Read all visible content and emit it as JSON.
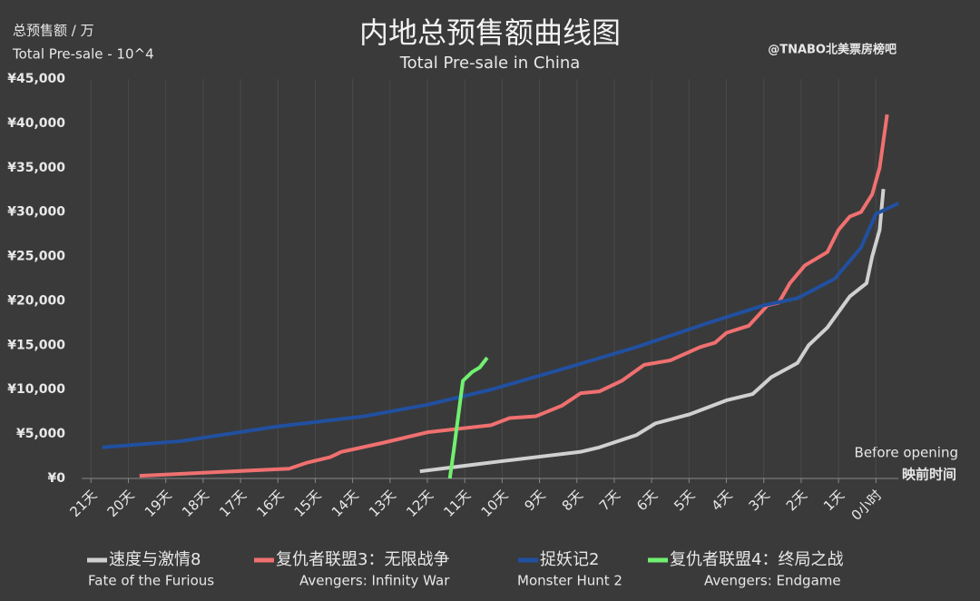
{
  "chart_data": {
    "type": "line",
    "title": "内地总预售额曲线图",
    "subtitle": "Total Pre-sale in China",
    "y_label": "总预售额 / 万",
    "y_label_en": "Total Pre-sale - 10^4",
    "watermark": "@TNABO北美票房榜吧",
    "x_label_en": "Before opening",
    "x_label": "映前时间",
    "xlim": [
      21.25,
      -0.6
    ],
    "ylim": [
      0,
      45000
    ],
    "xticks": [
      {
        "value": 21,
        "label": "21天"
      },
      {
        "value": 20,
        "label": "20天"
      },
      {
        "value": 19,
        "label": "19天"
      },
      {
        "value": 18,
        "label": "18天"
      },
      {
        "value": 17,
        "label": "17天"
      },
      {
        "value": 16,
        "label": "16天"
      },
      {
        "value": 15,
        "label": "15天"
      },
      {
        "value": 14,
        "label": "14天"
      },
      {
        "value": 13,
        "label": "13天"
      },
      {
        "value": 12,
        "label": "12天"
      },
      {
        "value": 11,
        "label": "11天"
      },
      {
        "value": 10,
        "label": "10天"
      },
      {
        "value": 9,
        "label": "9天"
      },
      {
        "value": 8,
        "label": "8天"
      },
      {
        "value": 7,
        "label": "7天"
      },
      {
        "value": 6,
        "label": "6天"
      },
      {
        "value": 5,
        "label": "5天"
      },
      {
        "value": 4,
        "label": "4天"
      },
      {
        "value": 3,
        "label": "3天"
      },
      {
        "value": 2,
        "label": "2天"
      },
      {
        "value": 1,
        "label": "1天"
      },
      {
        "value": 0,
        "label": "0小时"
      }
    ],
    "yticks": [
      {
        "value": 0,
        "label": "¥0"
      },
      {
        "value": 5000,
        "label": "¥5,000"
      },
      {
        "value": 10000,
        "label": "¥10,000"
      },
      {
        "value": 15000,
        "label": "¥15,000"
      },
      {
        "value": 20000,
        "label": "¥20,000"
      },
      {
        "value": 25000,
        "label": "¥25,000"
      },
      {
        "value": 30000,
        "label": "¥30,000"
      },
      {
        "value": 35000,
        "label": "¥35,000"
      },
      {
        "value": 40000,
        "label": "¥40,000"
      },
      {
        "value": 45000,
        "label": "¥45,000"
      }
    ],
    "grid": true,
    "legend": "bottom",
    "series": [
      {
        "name": "速度与激情8",
        "name_en": "Fate of the Furious",
        "color": "#d0d0d0",
        "x": [
          12.2,
          10.1,
          7.9,
          7.4,
          6.4,
          5.9,
          5.0,
          4.0,
          3.3,
          2.8,
          2.1,
          1.8,
          1.3,
          0.7,
          0.25,
          0.1,
          -0.1,
          -0.2
        ],
        "values": [
          800,
          1900,
          3000,
          3500,
          4900,
          6200,
          7200,
          8800,
          9500,
          11400,
          13000,
          15000,
          17000,
          20500,
          22000,
          25000,
          28000,
          32600
        ]
      },
      {
        "name": "复仇者联盟3：无限战争",
        "name_en": "Avengers: Infinity War",
        "color": "#f07070",
        "x": [
          19.7,
          15.7,
          15.2,
          14.6,
          14.3,
          13.2,
          12.0,
          10.3,
          9.8,
          9.1,
          8.4,
          7.9,
          7.4,
          6.8,
          6.2,
          5.5,
          4.7,
          4.3,
          4.0,
          3.4,
          2.9,
          2.6,
          2.3,
          1.9,
          1.3,
          1.0,
          0.7,
          0.4,
          0.1,
          -0.1,
          -0.2,
          -0.3
        ],
        "values": [
          300,
          1100,
          1800,
          2400,
          3000,
          4000,
          5200,
          6000,
          6800,
          7000,
          8200,
          9600,
          9800,
          11000,
          12800,
          13300,
          14800,
          15300,
          16400,
          17200,
          19500,
          19800,
          22000,
          24000,
          25500,
          28000,
          29500,
          30000,
          32000,
          35000,
          38000,
          41000
        ]
      },
      {
        "name": "捉妖记2",
        "name_en": "Monster Hunt 2",
        "color": "#2150a0",
        "x": [
          20.7,
          18.6,
          16.1,
          13.7,
          12.0,
          10.3,
          8.4,
          6.4,
          4.5,
          3.0,
          2.1,
          1.1,
          0.4,
          0.0,
          -0.6
        ],
        "values": [
          3500,
          4200,
          5800,
          7000,
          8300,
          10000,
          12300,
          14800,
          17500,
          19500,
          20300,
          22500,
          26000,
          29800,
          31000
        ]
      },
      {
        "name": "复仇者联盟4：终局之战",
        "name_en": "Avengers: Endgame",
        "color": "#70f070",
        "x": [
          11.4,
          11.3,
          11.05,
          10.8,
          10.6,
          10.4
        ],
        "values": [
          0,
          3000,
          11000,
          12000,
          12500,
          13600
        ]
      }
    ]
  }
}
